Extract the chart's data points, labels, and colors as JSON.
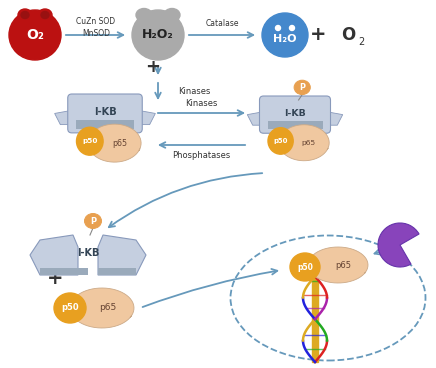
{
  "bg_color": "#ffffff",
  "o2_color": "#bb1111",
  "h2o2_color": "#aaaaaa",
  "h2o_color": "#4488cc",
  "arrow_color": "#6699bb",
  "ikb_color": "#c5cfe0",
  "ikb_edge_color": "#8899bb",
  "ikb_dark_color": "#9aaabb",
  "p50_color": "#e8a020",
  "p65_color": "#f0c8a0",
  "p65_edge_color": "#ccaa88",
  "phospho_color": "#e8a050",
  "purple_color": "#8844bb",
  "text_color": "#333333",
  "label_o2": "O₂",
  "label_h2o2": "H₂O₂",
  "label_h2o": "H₂O",
  "label_o2_right": "O₂",
  "label_cuzn": "CuZn SOD",
  "label_mnsod": "MnSOD",
  "label_catalase": "Catalase",
  "label_kinases": "Kinases",
  "label_phosphatases": "Phosphatases",
  "label_ikb": "I-KB",
  "label_p50": "p50",
  "label_p65": "p65",
  "label_P": "P",
  "label_plus": "+"
}
